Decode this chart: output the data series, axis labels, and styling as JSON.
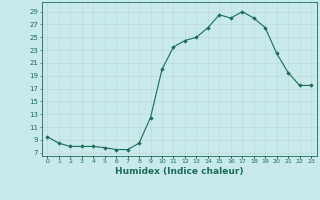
{
  "x": [
    0,
    1,
    2,
    3,
    4,
    5,
    6,
    7,
    8,
    9,
    10,
    11,
    12,
    13,
    14,
    15,
    16,
    17,
    18,
    19,
    20,
    21,
    22,
    23
  ],
  "y": [
    9.5,
    8.5,
    8.0,
    8.0,
    8.0,
    7.8,
    7.5,
    7.5,
    8.5,
    12.5,
    20.0,
    23.5,
    24.5,
    25.0,
    26.5,
    28.5,
    28.0,
    29.0,
    28.0,
    26.5,
    22.5,
    19.5,
    17.5,
    17.5
  ],
  "line_color": "#1a6b5a",
  "marker": "D",
  "marker_size": 1.8,
  "bg_color": "#c8eaea",
  "grid_color": "#c0d8d8",
  "tick_color": "#1a6b5a",
  "xlabel": "Humidex (Indice chaleur)",
  "xlabel_fontsize": 6.5,
  "ylabel_ticks": [
    7,
    9,
    11,
    13,
    15,
    17,
    19,
    21,
    23,
    25,
    27,
    29
  ],
  "ylim": [
    6.5,
    30.5
  ],
  "xlim": [
    -0.5,
    23.5
  ],
  "xtick_labels": [
    "0",
    "1",
    "2",
    "3",
    "4",
    "5",
    "6",
    "7",
    "8",
    "9",
    "10",
    "11",
    "12",
    "13",
    "14",
    "15",
    "16",
    "17",
    "18",
    "19",
    "20",
    "21",
    "22",
    "23"
  ]
}
